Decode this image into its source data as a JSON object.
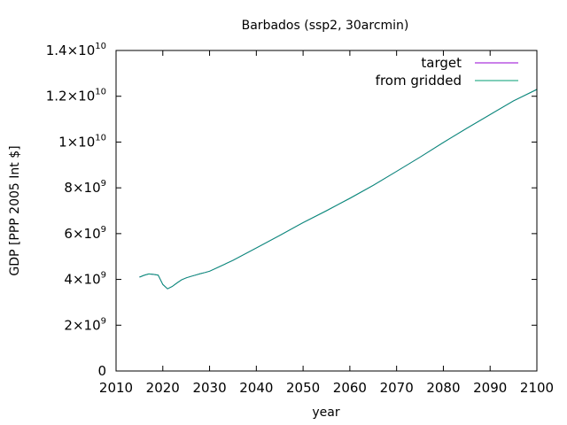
{
  "chart_data": {
    "type": "line",
    "title": "Barbados (ssp2, 30arcmin)",
    "xlabel": "year",
    "ylabel": "GDP [PPP 2005 Int $]",
    "xlim": [
      2010,
      2100
    ],
    "ylim": [
      0,
      14000000000
    ],
    "grid": false,
    "legend_position": "top-right",
    "x_ticks": [
      2010,
      2020,
      2030,
      2040,
      2050,
      2060,
      2070,
      2080,
      2090,
      2100
    ],
    "x_tick_labels": [
      "2010",
      "2020",
      "2030",
      "2040",
      "2050",
      "2060",
      "2070",
      "2080",
      "2090",
      "2100"
    ],
    "y_ticks": [
      {
        "value": 0,
        "mantissa": "0",
        "exponent": ""
      },
      {
        "value": 2000000000,
        "mantissa": "2×10",
        "exponent": "9"
      },
      {
        "value": 4000000000,
        "mantissa": "4×10",
        "exponent": "9"
      },
      {
        "value": 6000000000,
        "mantissa": "6×10",
        "exponent": "9"
      },
      {
        "value": 8000000000,
        "mantissa": "8×10",
        "exponent": "9"
      },
      {
        "value": 10000000000,
        "mantissa": "1×10",
        "exponent": "10"
      },
      {
        "value": 12000000000,
        "mantissa": "1.2×10",
        "exponent": "10"
      },
      {
        "value": 14000000000,
        "mantissa": "1.4×10",
        "exponent": "10"
      }
    ],
    "x": [
      2015,
      2016,
      2017,
      2018,
      2019,
      2020,
      2021,
      2022,
      2023,
      2024,
      2025,
      2026,
      2027,
      2028,
      2029,
      2030,
      2035,
      2040,
      2045,
      2050,
      2055,
      2060,
      2065,
      2070,
      2075,
      2080,
      2085,
      2090,
      2095,
      2100
    ],
    "series": [
      {
        "name": "target",
        "color": "#9400d3",
        "values": [
          4100000000,
          4180000000,
          4240000000,
          4220000000,
          4190000000,
          3780000000,
          3590000000,
          3690000000,
          3840000000,
          3980000000,
          4070000000,
          4130000000,
          4190000000,
          4250000000,
          4300000000,
          4360000000,
          4830000000,
          5370000000,
          5920000000,
          6480000000,
          7000000000,
          7540000000,
          8110000000,
          8720000000,
          9340000000,
          9980000000,
          10600000000,
          11200000000,
          11800000000,
          12300000000
        ]
      },
      {
        "name": "from gridded",
        "color": "#009e73",
        "values": [
          4100000000,
          4180000000,
          4240000000,
          4220000000,
          4190000000,
          3780000000,
          3590000000,
          3690000000,
          3840000000,
          3980000000,
          4070000000,
          4130000000,
          4190000000,
          4250000000,
          4300000000,
          4360000000,
          4830000000,
          5370000000,
          5920000000,
          6480000000,
          7000000000,
          7540000000,
          8110000000,
          8720000000,
          9340000000,
          9980000000,
          10600000000,
          11200000000,
          11800000000,
          12300000000
        ]
      }
    ]
  }
}
